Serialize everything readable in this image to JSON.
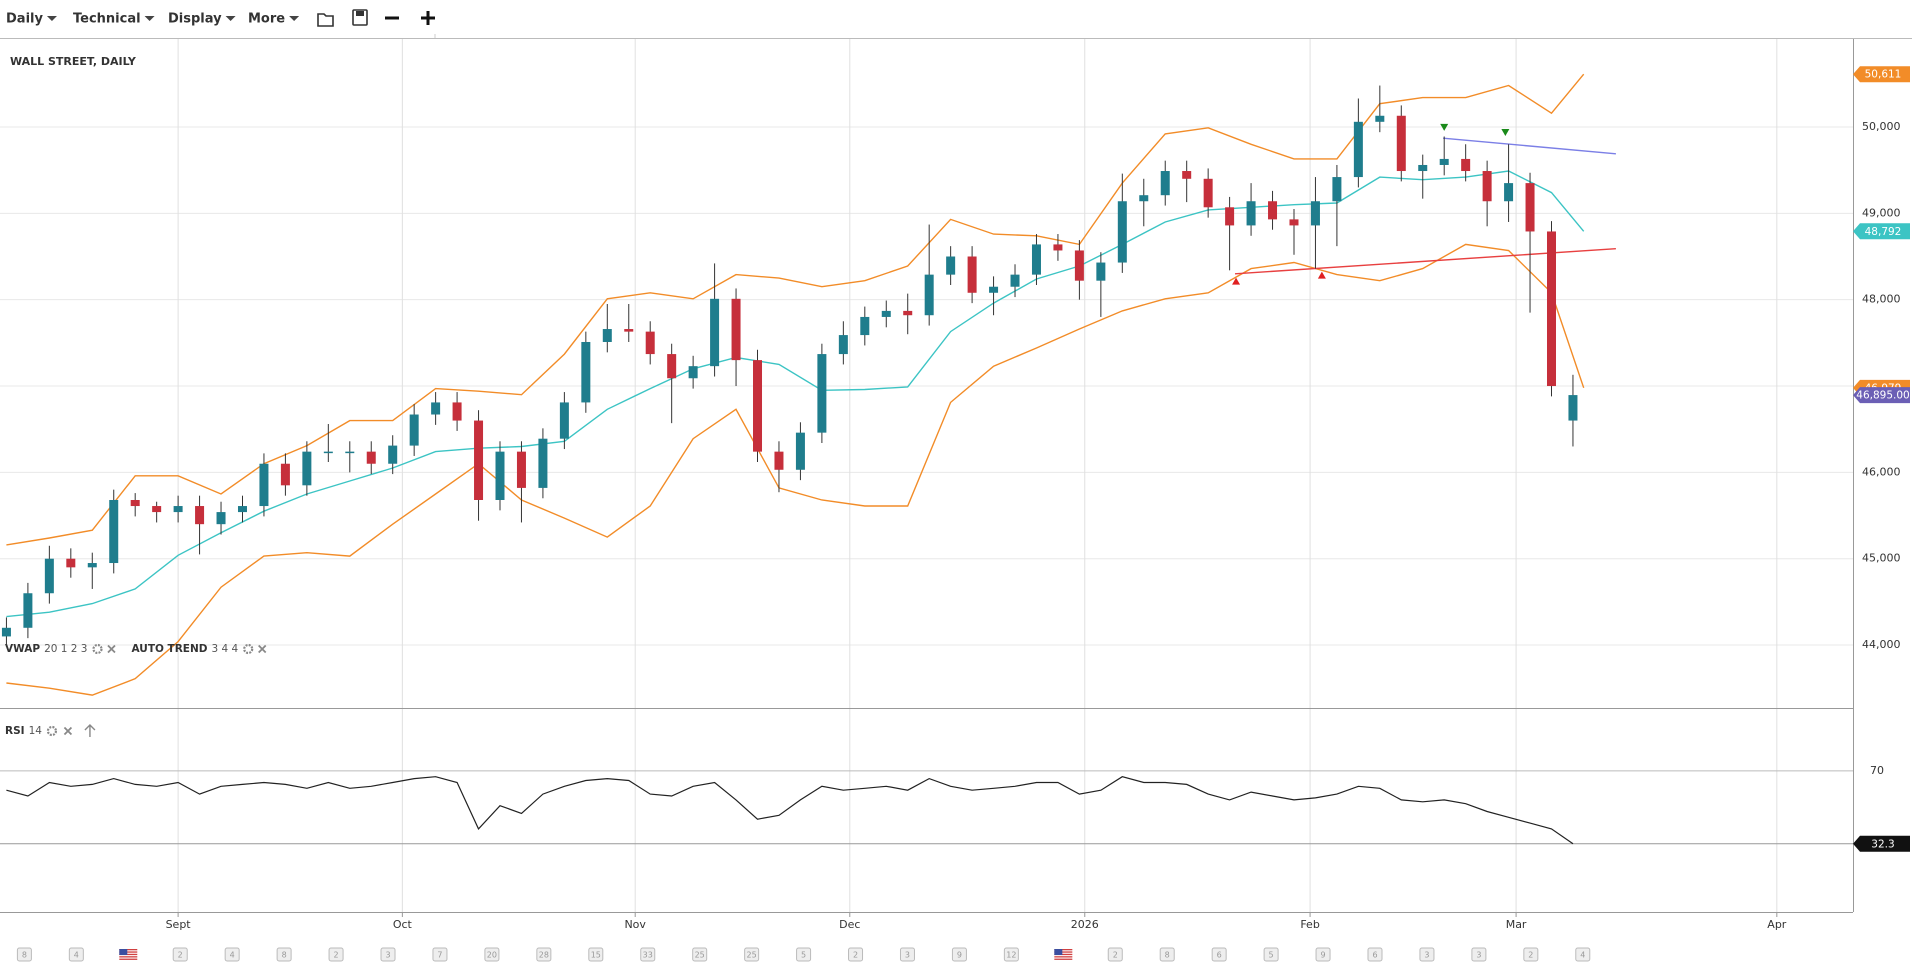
{
  "toolbar": {
    "menus": [
      "Daily",
      "Technical",
      "Display",
      "More"
    ]
  },
  "calendar_events": [
    "8",
    "4",
    null,
    "2",
    "4",
    "8",
    "2",
    "3",
    "7",
    "20",
    "28",
    "15",
    "33",
    "25",
    "25",
    "5",
    "2",
    "3",
    "9",
    "12",
    null,
    "2",
    "8",
    "6",
    "5",
    "9",
    "6",
    "3",
    "3",
    "2",
    "4"
  ],
  "chart_data": [
    {
      "type": "candlestick",
      "title": "WALL STREET, DAILY",
      "up_color": "#1f7d8d",
      "down_color": "#c62f3b",
      "indicators": [
        {
          "name": "VWAP",
          "params": "20 1 2 3"
        },
        {
          "name": "AUTO TREND",
          "params": "3 4 4"
        }
      ],
      "x": [
        0,
        2,
        4,
        6,
        8,
        10,
        12,
        14,
        16,
        18,
        20,
        22,
        24,
        26,
        28,
        30,
        32,
        34,
        36,
        38,
        40,
        42,
        44,
        46,
        48,
        50,
        52,
        54,
        56,
        58,
        60,
        62,
        64,
        66,
        68,
        70,
        72,
        74,
        76,
        78,
        80,
        82,
        84,
        86,
        88,
        90,
        92,
        94,
        96,
        98,
        100,
        102,
        104,
        106,
        108,
        110,
        112,
        114,
        116,
        118,
        120,
        122,
        124,
        126,
        128,
        130,
        132,
        134,
        136,
        138,
        140,
        142,
        144,
        146
      ],
      "open": [
        44100,
        44200,
        44600,
        45000,
        44900,
        44950,
        45680,
        45610,
        45540,
        45610,
        45400,
        45540,
        45610,
        46100,
        45850,
        46240,
        46240,
        46240,
        46100,
        46310,
        46670,
        46810,
        46600,
        45680,
        46240,
        45820,
        46390,
        46810,
        47510,
        47660,
        47630,
        47370,
        47090,
        47230,
        48010,
        47300,
        46240,
        46030,
        46460,
        47370,
        47590,
        47800,
        47870,
        47820,
        48290,
        48500,
        48080,
        48150,
        48290,
        48640,
        48570,
        48220,
        48430,
        49140,
        49210,
        49490,
        49400,
        49070,
        48860,
        49140,
        48930,
        48860,
        49140,
        49420,
        50060,
        50130,
        49490,
        49560,
        49630,
        49490,
        49140,
        49350,
        48790,
        46600
      ],
      "high": [
        44320,
        44720,
        45150,
        45120,
        45070,
        45800,
        45760,
        45660,
        45730,
        45730,
        45660,
        45730,
        46220,
        46220,
        46360,
        46560,
        46360,
        46360,
        46430,
        46790,
        46930,
        46930,
        46720,
        46360,
        46360,
        46510,
        46930,
        47630,
        47950,
        47950,
        47750,
        47490,
        47350,
        48420,
        48130,
        47420,
        46360,
        46580,
        47490,
        47750,
        47920,
        47990,
        48070,
        48870,
        48620,
        48620,
        48270,
        48410,
        48760,
        48760,
        48690,
        48550,
        49460,
        49400,
        49610,
        49610,
        49520,
        49190,
        49350,
        49260,
        49050,
        49420,
        49560,
        50330,
        50480,
        50250,
        49680,
        49890,
        49800,
        49610,
        49800,
        49470,
        48910,
        47130
      ],
      "low": [
        43980,
        44080,
        44480,
        44780,
        44650,
        44830,
        45490,
        45420,
        45420,
        45050,
        45280,
        45420,
        45490,
        45730,
        45730,
        46120,
        46000,
        45980,
        45980,
        46190,
        46550,
        46480,
        45440,
        45560,
        45420,
        45700,
        46270,
        46690,
        47390,
        47510,
        47250,
        46570,
        46970,
        47110,
        47000,
        46120,
        45770,
        45910,
        46340,
        47250,
        47470,
        47680,
        47600,
        47700,
        48170,
        47960,
        47820,
        48030,
        48170,
        48450,
        48000,
        47800,
        48310,
        48850,
        49090,
        49130,
        48950,
        48340,
        48740,
        48810,
        48520,
        48360,
        48620,
        49300,
        49940,
        49370,
        49170,
        49440,
        49370,
        48850,
        48900,
        47850,
        46880,
        46300
      ],
      "close": [
        44200,
        44600,
        45000,
        44900,
        44950,
        45680,
        45610,
        45540,
        45610,
        45400,
        45540,
        45610,
        46100,
        45850,
        46240,
        46240,
        46240,
        46100,
        46310,
        46670,
        46810,
        46600,
        45680,
        46240,
        45820,
        46390,
        46810,
        47510,
        47660,
        47630,
        47370,
        47090,
        47230,
        48010,
        47300,
        46240,
        46030,
        46460,
        47370,
        47590,
        47800,
        47870,
        47820,
        48290,
        48500,
        48080,
        48150,
        48290,
        48640,
        48570,
        48220,
        48430,
        49140,
        49210,
        49490,
        49400,
        49070,
        48860,
        49140,
        48930,
        48860,
        49140,
        49420,
        50060,
        50130,
        49490,
        49560,
        49630,
        49490,
        49140,
        49350,
        48790,
        47000,
        46895
      ],
      "overlay_x": [
        0,
        4,
        8,
        12,
        16,
        20,
        24,
        28,
        32,
        36,
        40,
        44,
        48,
        52,
        56,
        60,
        64,
        68,
        72,
        76,
        80,
        84,
        88,
        92,
        96,
        100,
        104,
        108,
        112,
        116,
        120,
        124,
        128,
        132,
        136,
        140,
        144,
        147
      ],
      "overlays": [
        {
          "color": "#f28c28",
          "values": [
            45160,
            45240,
            45330,
            45960,
            45960,
            45750,
            46100,
            46310,
            46600,
            46600,
            46970,
            46940,
            46900,
            47370,
            48010,
            48080,
            48010,
            48290,
            48250,
            48150,
            48220,
            48390,
            48930,
            48760,
            48740,
            48640,
            49350,
            49920,
            49990,
            49800,
            49630,
            49630,
            50270,
            50340,
            50340,
            50480,
            50160,
            50611
          ],
          "end_label": "50,611"
        },
        {
          "color": "#3cc4c4",
          "values": [
            44330,
            44380,
            44480,
            44650,
            45040,
            45300,
            45550,
            45750,
            45900,
            46050,
            46240,
            46280,
            46300,
            46360,
            46730,
            46970,
            47200,
            47330,
            47250,
            46950,
            46960,
            46990,
            47630,
            47960,
            48240,
            48390,
            48640,
            48900,
            49040,
            49070,
            49100,
            49120,
            49420,
            49390,
            49420,
            49490,
            49240,
            48792
          ],
          "end_label": "48,792"
        },
        {
          "color": "#f28c28",
          "values": [
            43560,
            43500,
            43420,
            43610,
            44040,
            44670,
            45030,
            45070,
            45030,
            45400,
            45750,
            46100,
            45680,
            45470,
            45250,
            45610,
            46390,
            46730,
            45820,
            45680,
            45610,
            45610,
            46810,
            47230,
            47440,
            47660,
            47870,
            48010,
            48080,
            48360,
            48430,
            48290,
            48220,
            48360,
            48640,
            48570,
            48080,
            46979
          ],
          "end_label": "46,979"
        }
      ],
      "trend_lines": [
        {
          "color": "#7b7fe6",
          "x": [
            133.9,
            150
          ],
          "y": [
            49870,
            49690
          ]
        },
        {
          "color": "#e84040",
          "x": [
            114.5,
            150
          ],
          "y": [
            48300,
            48590
          ]
        }
      ],
      "signals": [
        {
          "x": 134,
          "y": 49990,
          "direction": "down",
          "color": "#1a8a1a"
        },
        {
          "x": 139.7,
          "y": 49930,
          "direction": "down",
          "color": "#1a8a1a"
        },
        {
          "x": 114.6,
          "y": 48220,
          "direction": "up",
          "color": "#e02020"
        },
        {
          "x": 122.6,
          "y": 48290,
          "direction": "up",
          "color": "#e02020"
        }
      ],
      "current": {
        "value": 46895,
        "label": "46,895.00",
        "color": "#6b5fb5"
      },
      "xlim": [
        -0.6,
        172.1
      ],
      "ylim": [
        43271,
        51019
      ],
      "yticks": [
        {
          "value": 44000,
          "label": "44,000"
        },
        {
          "value": 45000,
          "label": "45,000"
        },
        {
          "value": 46000,
          "label": "46,000"
        },
        {
          "value": 47000,
          "label": "47,000"
        },
        {
          "value": 48000,
          "label": "48,000"
        },
        {
          "value": 49000,
          "label": "49,000"
        },
        {
          "value": 50000,
          "label": "50,000"
        }
      ],
      "grid": true
    },
    {
      "type": "line",
      "indicator": {
        "name": "RSI",
        "params": "14"
      },
      "color": "#222222",
      "x": [
        0,
        2,
        4,
        6,
        8,
        10,
        12,
        14,
        16,
        18,
        20,
        22,
        24,
        26,
        28,
        30,
        32,
        34,
        36,
        38,
        40,
        42,
        44,
        46,
        48,
        50,
        52,
        54,
        56,
        58,
        60,
        62,
        64,
        66,
        68,
        70,
        72,
        74,
        76,
        78,
        80,
        82,
        84,
        86,
        88,
        90,
        92,
        94,
        96,
        98,
        100,
        102,
        104,
        106,
        108,
        110,
        112,
        114,
        116,
        118,
        120,
        122,
        124,
        126,
        128,
        130,
        132,
        134,
        136,
        138,
        140,
        142,
        144,
        146
      ],
      "values": [
        60,
        57,
        64,
        62,
        63,
        66,
        63,
        62,
        64,
        58,
        62,
        63,
        64,
        63,
        61,
        64,
        61,
        62,
        64,
        66,
        67,
        64,
        40,
        52,
        48,
        58,
        62,
        65,
        66,
        65,
        58,
        57,
        62,
        64,
        55,
        45,
        47,
        55,
        62,
        60,
        61,
        62,
        60,
        66,
        62,
        60,
        61,
        62,
        64,
        64,
        58,
        60,
        67,
        64,
        64,
        63,
        58,
        55,
        59,
        57,
        55,
        56,
        58,
        62,
        61,
        55,
        54,
        55,
        53,
        49,
        46,
        43,
        40,
        32.3
      ],
      "end_label": "32.3",
      "xlim": [
        -0.6,
        172.1
      ],
      "ylim": [
        -3,
        102
      ],
      "yticks": [
        70
      ],
      "xticks": [
        {
          "value": 16,
          "label": "Sept"
        },
        {
          "value": 36.9,
          "label": "Oct"
        },
        {
          "value": 58.6,
          "label": "Nov"
        },
        {
          "value": 78.6,
          "label": "Dec"
        },
        {
          "value": 100.5,
          "label": "2026"
        },
        {
          "value": 121.5,
          "label": "Feb"
        },
        {
          "value": 140.7,
          "label": "Mar"
        },
        {
          "value": 165,
          "label": "Apr"
        }
      ]
    }
  ]
}
